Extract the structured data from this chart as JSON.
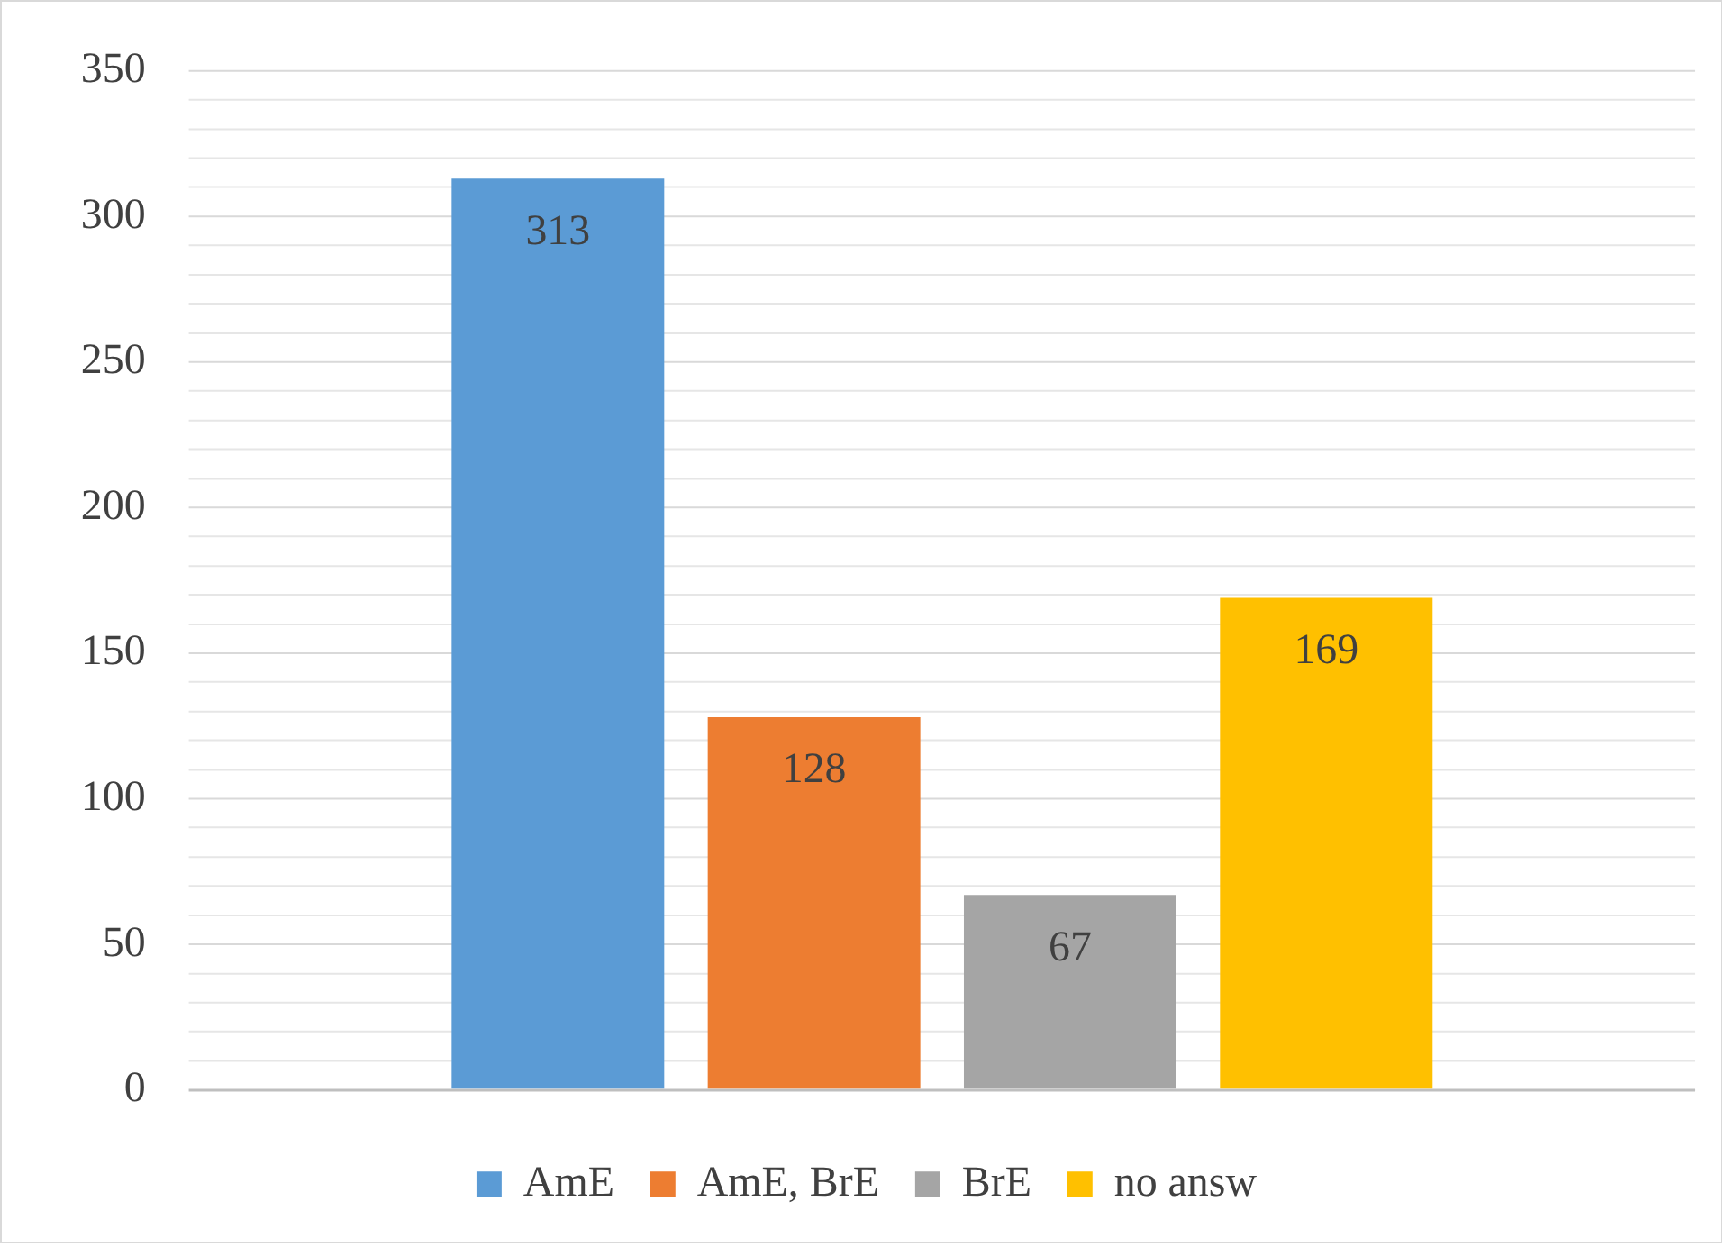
{
  "chart_data": {
    "type": "bar",
    "categories": [
      null
    ],
    "series": [
      {
        "name": "AmE",
        "color": "#5b9bd5",
        "values": [
          313
        ]
      },
      {
        "name": "AmE, BrE",
        "color": "#ed7d31",
        "values": [
          128
        ]
      },
      {
        "name": "BrE",
        "color": "#a5a5a5",
        "values": [
          67
        ]
      },
      {
        "name": "no answ",
        "color": "#ffc000",
        "values": [
          169
        ]
      }
    ],
    "ylim": [
      0,
      350
    ],
    "yticks": [
      0,
      {
        "value": 10,
        "label": null
      },
      {
        "value": 20,
        "label": null
      },
      {
        "value": 30,
        "label": null
      },
      {
        "value": 40,
        "label": null
      },
      50,
      {
        "value": 60,
        "label": null
      },
      {
        "value": 70,
        "label": null
      },
      {
        "value": 80,
        "label": null
      },
      {
        "value": 90,
        "label": null
      },
      100,
      {
        "value": 110,
        "label": null
      },
      {
        "value": 120,
        "label": null
      },
      {
        "value": 130,
        "label": null
      },
      {
        "value": 140,
        "label": null
      },
      150,
      {
        "value": 160,
        "label": null
      },
      {
        "value": 170,
        "label": null
      },
      {
        "value": 180,
        "label": null
      },
      {
        "value": 190,
        "label": null
      },
      200,
      {
        "value": 210,
        "label": null
      },
      {
        "value": 220,
        "label": null
      },
      {
        "value": 230,
        "label": null
      },
      {
        "value": 240,
        "label": null
      },
      250,
      {
        "value": 260,
        "label": null
      },
      {
        "value": 270,
        "label": null
      },
      {
        "value": 280,
        "label": null
      },
      {
        "value": 290,
        "label": null
      },
      300,
      {
        "value": 310,
        "label": null
      },
      {
        "value": 320,
        "label": null
      },
      {
        "value": 330,
        "label": null
      },
      {
        "value": 340,
        "label": null
      },
      350
    ],
    "grid": "y",
    "legend": "bottom",
    "data_labels": true
  }
}
